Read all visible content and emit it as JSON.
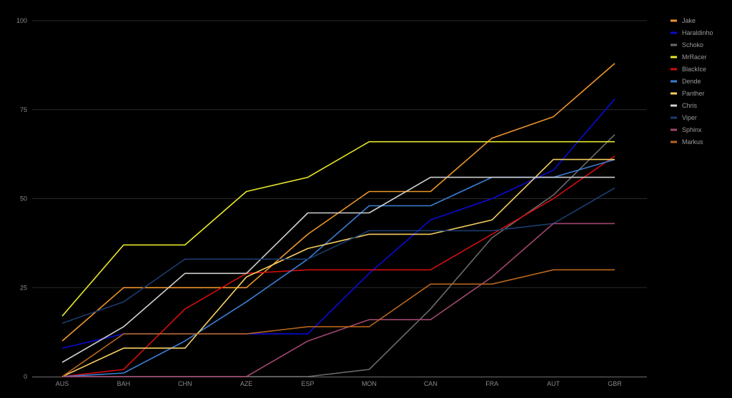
{
  "chart_data": {
    "type": "line",
    "title": "",
    "xlabel": "",
    "ylabel": "",
    "categories": [
      "AUS",
      "BAH",
      "CHN",
      "AZE",
      "ESP",
      "MON",
      "CAN",
      "FRA",
      "AUT",
      "GBR"
    ],
    "ylim": [
      0,
      100
    ],
    "yticks": [
      0,
      25,
      50,
      75,
      100
    ],
    "grid": "horizontal",
    "legend_position": "top-right",
    "series": [
      {
        "name": "Jake",
        "color": "#f0962a",
        "values": [
          10,
          25,
          25,
          25,
          40,
          52,
          52,
          67,
          73,
          88
        ]
      },
      {
        "name": "Haraldinho",
        "color": "#0a0ad6",
        "values": [
          8,
          12,
          12,
          12,
          12,
          29,
          44,
          50,
          58,
          78
        ]
      },
      {
        "name": "Schoko",
        "color": "#6b6b6b",
        "values": [
          0,
          0,
          0,
          0,
          0,
          2,
          19,
          39,
          51,
          68
        ]
      },
      {
        "name": "MrRacer",
        "color": "#e8e82a",
        "values": [
          17,
          37,
          37,
          52,
          56,
          66,
          66,
          66,
          66,
          66
        ]
      },
      {
        "name": "BlackIce",
        "color": "#d40d0d",
        "values": [
          0,
          2,
          19,
          29,
          30,
          30,
          30,
          40,
          50,
          62
        ]
      },
      {
        "name": "Dende",
        "color": "#3a7fd6",
        "values": [
          0,
          1,
          10,
          21,
          33,
          48,
          48,
          56,
          56,
          61
        ]
      },
      {
        "name": "Panther",
        "color": "#f5cf62",
        "values": [
          0,
          8,
          8,
          28,
          36,
          40,
          40,
          44,
          61,
          61
        ]
      },
      {
        "name": "Chris",
        "color": "#cfcfcf",
        "values": [
          4,
          14,
          29,
          29,
          46,
          46,
          56,
          56,
          56,
          56
        ]
      },
      {
        "name": "Viper",
        "color": "#1a3d6e",
        "values": [
          15,
          21,
          33,
          33,
          33,
          41,
          41,
          41,
          43,
          53
        ]
      },
      {
        "name": "Sphinx",
        "color": "#a04670",
        "values": [
          0,
          0,
          0,
          0,
          10,
          16,
          16,
          28,
          43,
          43
        ]
      },
      {
        "name": "Markus",
        "color": "#b8661c",
        "values": [
          0,
          12,
          12,
          12,
          14,
          14,
          26,
          26,
          30,
          30
        ]
      }
    ]
  }
}
